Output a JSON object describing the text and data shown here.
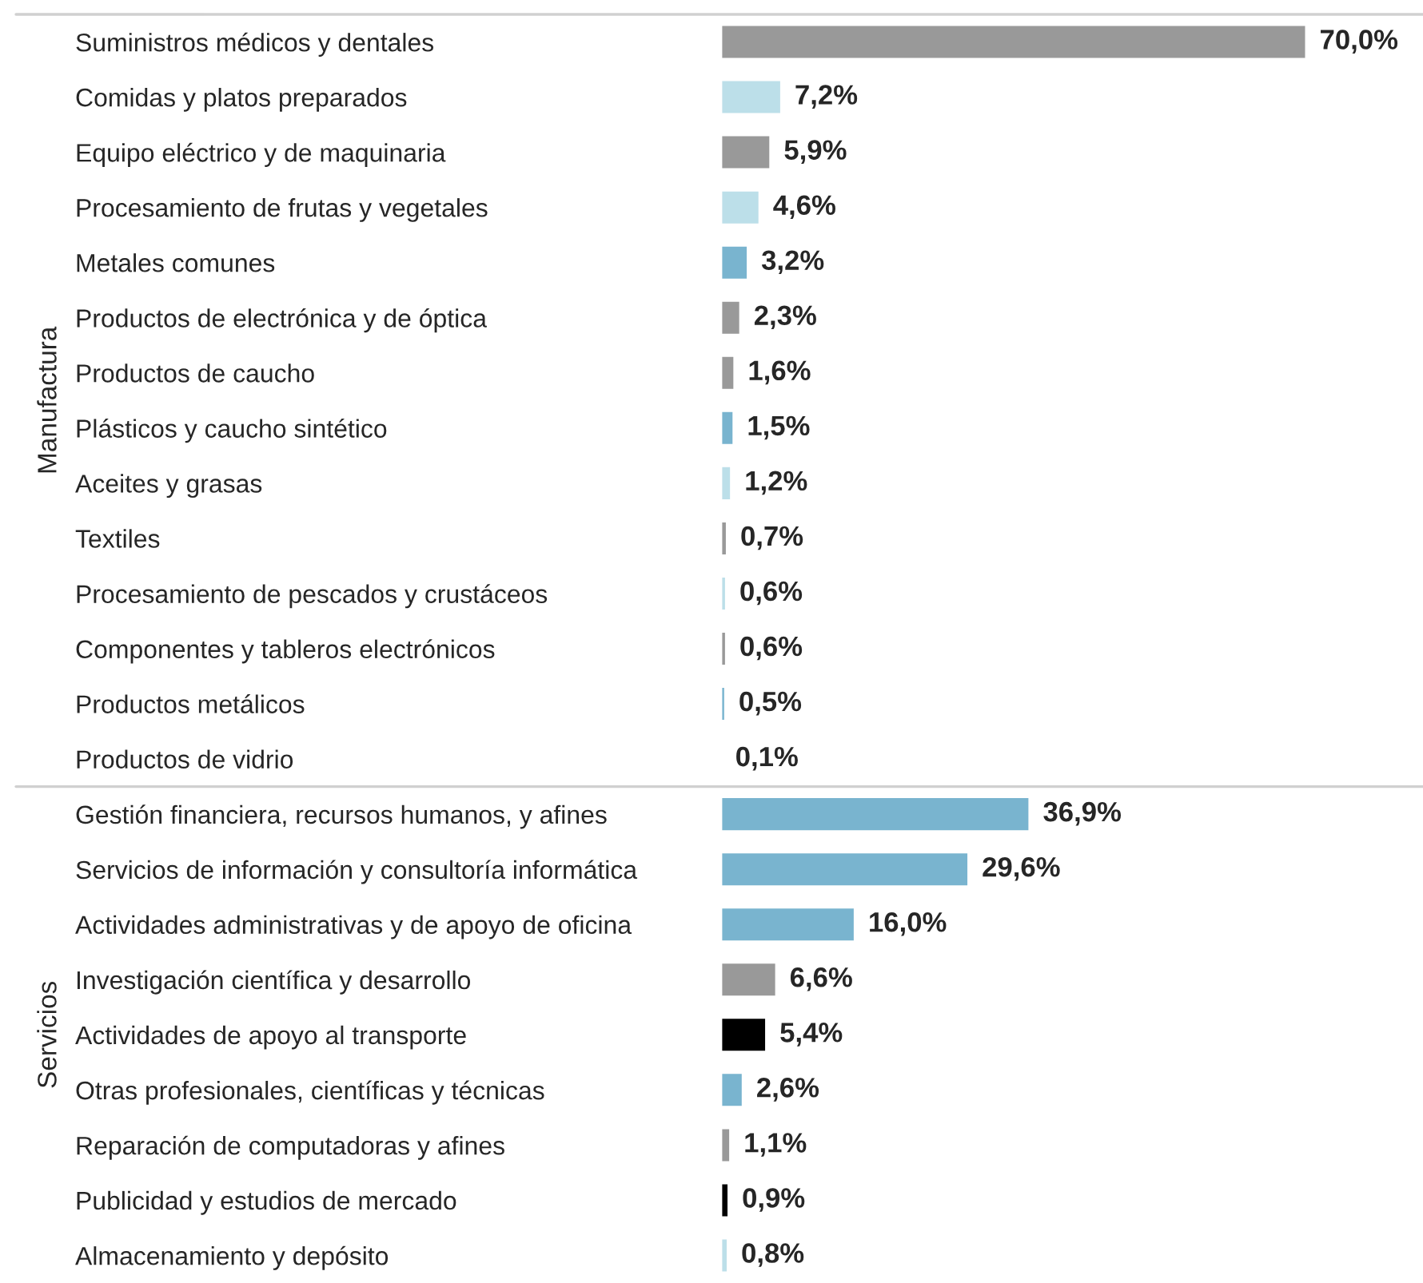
{
  "chart_data": [
    {
      "type": "bar",
      "orientation": "horizontal",
      "ylabel": "Manufactura",
      "categories": [
        "Suministros médicos y dentales",
        "Comidas y platos preparados",
        "Equipo eléctrico y de maquinaria",
        "Procesamiento de frutas y vegetales",
        "Metales comunes",
        "Productos de electrónica y de óptica",
        "Productos de caucho",
        "Plásticos y caucho sintético",
        "Aceites y grasas",
        "Textiles",
        "Procesamiento de pescados y crustáceos",
        "Componentes y tableros electrónicos",
        "Productos metálicos",
        "Productos de vidrio"
      ],
      "values": [
        70.0,
        7.2,
        5.9,
        4.6,
        3.2,
        2.3,
        1.6,
        1.5,
        1.2,
        0.7,
        0.6,
        0.6,
        0.5,
        0.1
      ],
      "colors": [
        "#999999",
        "#bcdfe9",
        "#999999",
        "#bcdfe9",
        "#79b4cf",
        "#999999",
        "#999999",
        "#79b4cf",
        "#bcdfe9",
        "#999999",
        "#bcdfe9",
        "#999999",
        "#79b4cf",
        "#bcdfe9"
      ],
      "value_labels": [
        "70,0%",
        "7,2%",
        "5,9%",
        "4,6%",
        "3,2%",
        "2,3%",
        "1,6%",
        "1,5%",
        "1,2%",
        "0,7%",
        "0,6%",
        "0,6%",
        "0,5%",
        "0,1%"
      ],
      "grid": false,
      "legend": false
    },
    {
      "type": "bar",
      "orientation": "horizontal",
      "ylabel": "Servicios",
      "categories": [
        "Gestión financiera, recursos humanos, y afines",
        "Servicios de información y consultoría informática",
        "Actividades administrativas y de apoyo de oficina",
        "Investigación científica y desarrollo",
        "Actividades de apoyo al transporte",
        "Otras profesionales, científicas y técnicas",
        "Reparación de computadoras y afines",
        "Publicidad y estudios de mercado",
        "Almacenamiento y depósito"
      ],
      "values": [
        36.9,
        29.6,
        16.0,
        6.6,
        5.4,
        2.6,
        1.1,
        0.9,
        0.8
      ],
      "colors": [
        "#79b4cf",
        "#79b4cf",
        "#79b4cf",
        "#999999",
        "#000000",
        "#79b4cf",
        "#999999",
        "#000000",
        "#bcdfe9"
      ],
      "value_labels": [
        "36,9%",
        "29,6%",
        "16,0%",
        "6,6%",
        "5,4%",
        "2,6%",
        "1,1%",
        "0,9%",
        "0,8%"
      ],
      "grid": false,
      "legend": false
    }
  ]
}
